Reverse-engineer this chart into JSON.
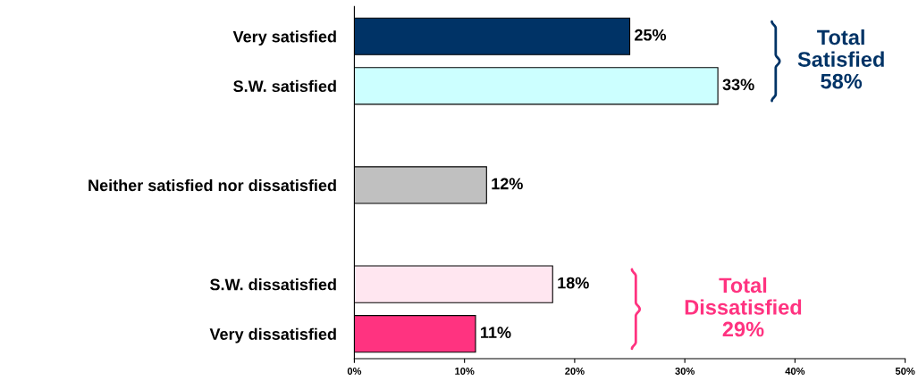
{
  "chart_data": {
    "type": "bar",
    "orientation": "horizontal",
    "categories": [
      "Very satisfied",
      "S.W. satisfied",
      null,
      "Neither satisfied nor dissatisfied",
      null,
      "S.W. dissatisfied",
      "Very dissatisfied"
    ],
    "values": [
      25,
      33,
      null,
      12,
      null,
      18,
      11
    ],
    "value_labels": [
      "25%",
      "33%",
      null,
      "12%",
      null,
      "18%",
      "11%"
    ],
    "colors": [
      "#003366",
      "#ccffff",
      "#c0c0c0",
      "#c0c0c0",
      "#c0c0c0",
      "#ffe6f0",
      "#ff3380"
    ],
    "xlim": [
      0,
      50
    ],
    "xticks": [
      {
        "value": 0,
        "label": "0%"
      },
      {
        "value": 10,
        "label": "10%"
      },
      {
        "value": 20,
        "label": "20%"
      },
      {
        "value": 30,
        "label": "30%"
      },
      {
        "value": 40,
        "label": "40%"
      },
      {
        "value": 50,
        "label": "50%"
      }
    ],
    "annotations": [
      "Total\nSatisfied\n58%",
      "Total\nDissatisfied\n29%"
    ],
    "grid": false
  }
}
